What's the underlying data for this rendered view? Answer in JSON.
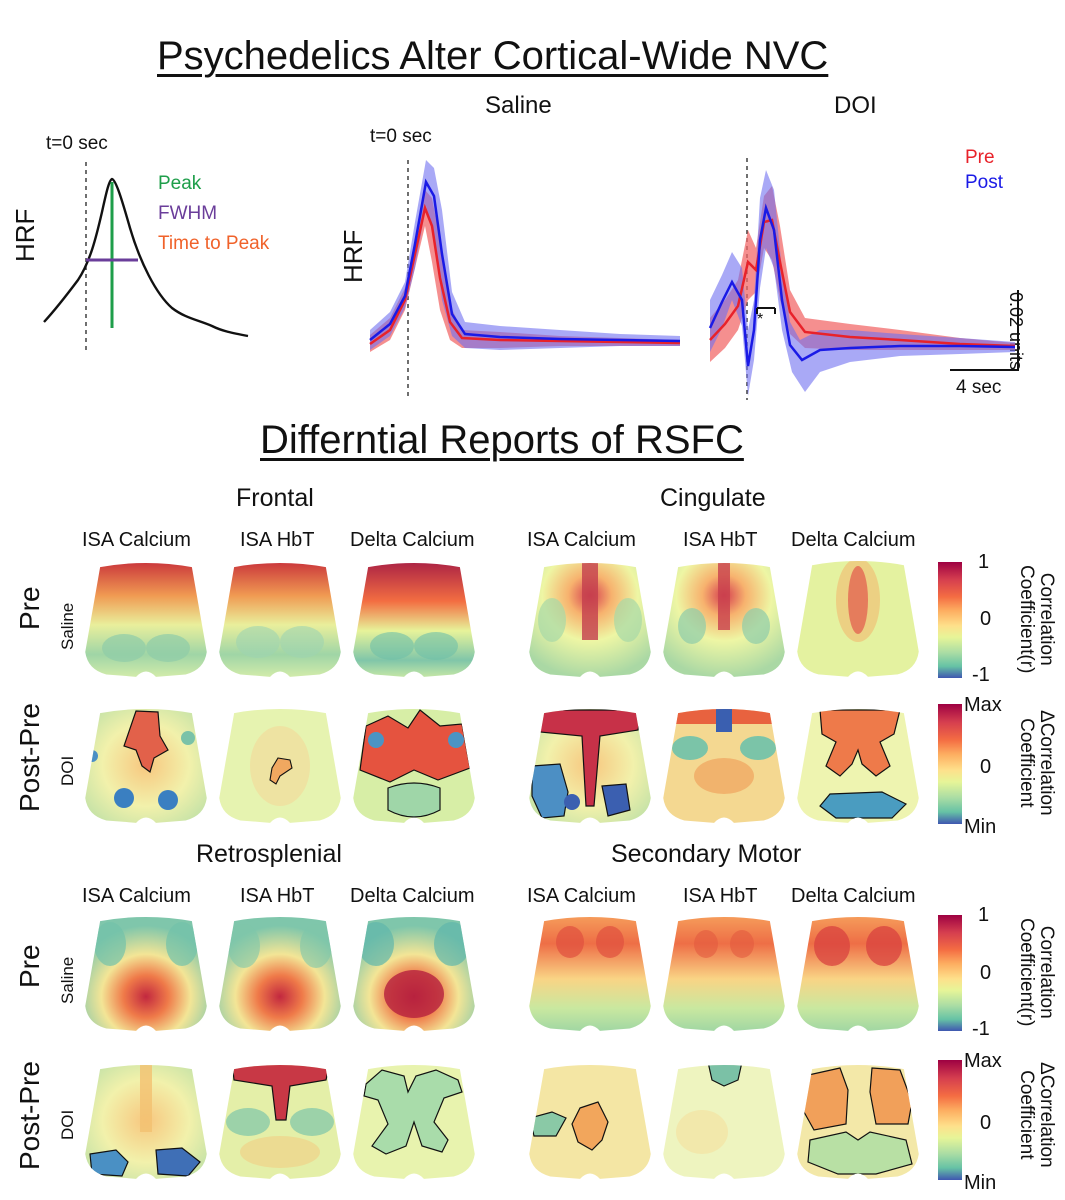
{
  "title_nvc": "Psychedelics Alter Cortical-Wide NVC",
  "title_rsfc": "Differntial Reports of RSFC",
  "hrf": {
    "y_label": "HRF",
    "t0_label": "t=0 sec",
    "legend_schematic": [
      "Peak",
      "FWHM",
      "Time to Peak"
    ],
    "saline_label": "Saline",
    "doi_label": "DOI",
    "legend_traces": [
      "Pre",
      "Post"
    ],
    "significance": "*",
    "scale_y": "0.02 units",
    "scale_x": "4 sec"
  },
  "rsfc": {
    "sections": [
      "Frontal",
      "Cingulate",
      "Retrosplenial",
      "Secondary Motor"
    ],
    "columns": [
      "ISA Calcium",
      "ISA HbT",
      "Delta Calcium"
    ],
    "rows": [
      {
        "label": "Pre",
        "sub": "Saline"
      },
      {
        "label": "Post-Pre",
        "sub": "DOI"
      }
    ],
    "colorbar_corr": {
      "max": "1",
      "mid": "0",
      "min": "-1",
      "label_line1": "Correlation",
      "label_line2": "Coefficient(r)"
    },
    "colorbar_delta": {
      "max": "Max",
      "mid": "0",
      "min": "Min",
      "label_line1": "ΔCorrelation",
      "label_line2": "Coefficient"
    }
  },
  "colors": {
    "pre": "#e8222a",
    "post": "#1a1ae6",
    "peak": "#1e9e4a",
    "fwhm": "#6a3d9a",
    "ttp": "#f0622a"
  }
}
